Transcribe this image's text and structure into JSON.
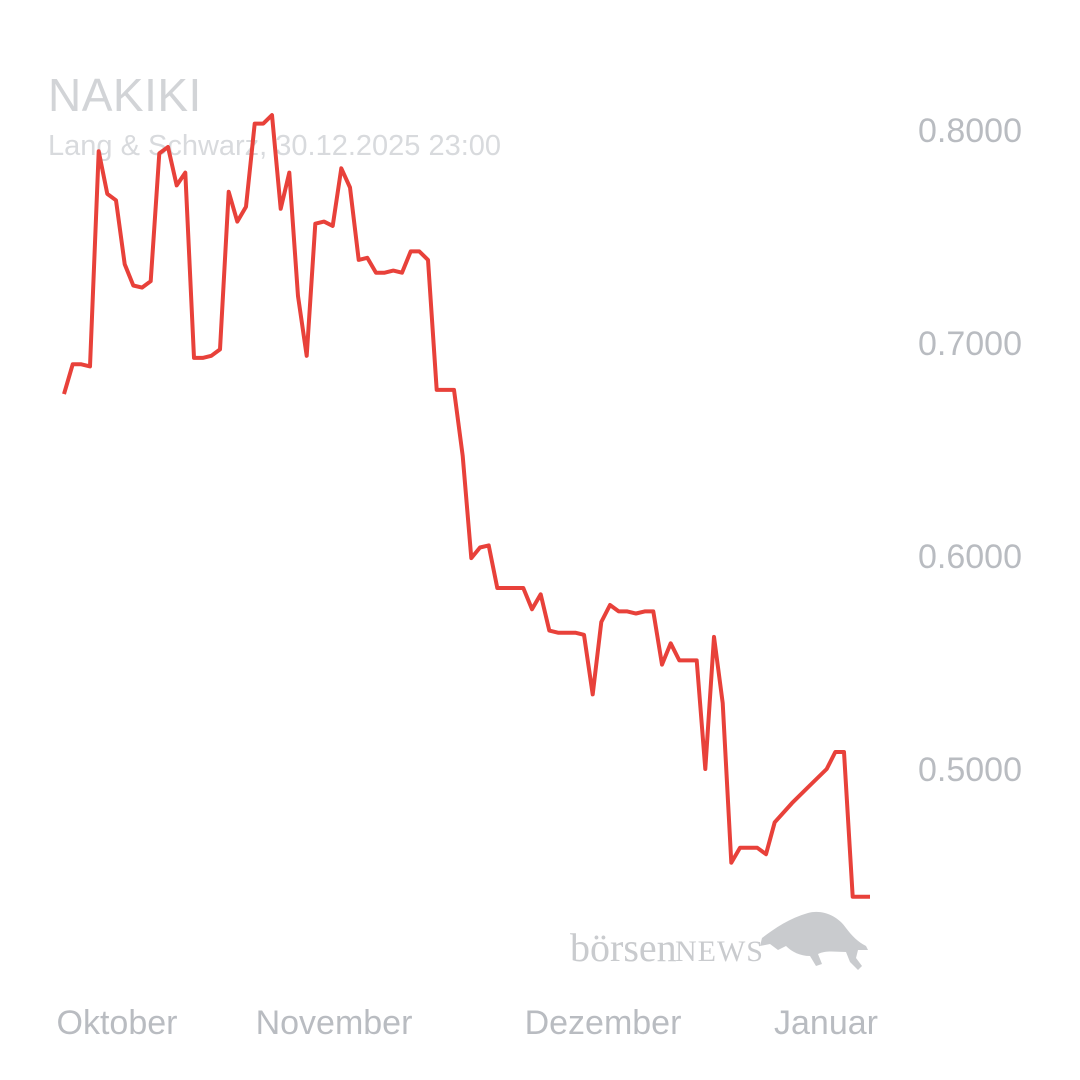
{
  "header": {
    "title": "NAKIKI",
    "subtitle": "Lang & Schwarz, 30.12.2025 23:00"
  },
  "watermark": {
    "text_main": "börsen",
    "text_news": "NEWS",
    "icon": "bull-icon"
  },
  "colors": {
    "line": "#e8413a",
    "axis_text": "#b9bcc1",
    "title": "#d2d4d7"
  },
  "chart_data": {
    "type": "line",
    "title": "NAKIKI",
    "subtitle": "Lang & Schwarz, 30.12.2025 23:00",
    "xlabel": "",
    "ylabel": "",
    "ylim": [
      0.4375,
      0.8115
    ],
    "yticks": [
      0.8,
      0.7,
      0.6,
      0.5
    ],
    "ytick_labels": [
      "0.8000",
      "0.7000",
      "0.6000",
      "0.5000"
    ],
    "xticks": [
      0,
      36,
      74,
      111
    ],
    "xtick_labels": [
      "Oktober",
      "November",
      "Dezember",
      "Januar"
    ],
    "xlim": [
      -2,
      114
    ],
    "grid": false,
    "legend": "none",
    "series": [
      {
        "values": [
          0.676,
          0.69,
          0.69,
          0.689,
          0.79,
          0.77,
          0.767,
          0.737,
          0.727,
          0.726,
          0.729,
          0.789,
          0.792,
          0.774,
          0.78,
          0.693,
          0.693,
          0.694,
          0.697,
          0.771,
          0.757,
          0.764,
          0.803,
          0.803,
          0.807,
          0.763,
          0.78,
          0.722,
          0.694,
          0.756,
          0.757,
          0.755,
          0.782,
          0.773,
          0.739,
          0.74,
          0.733,
          0.733,
          0.734,
          0.733,
          0.743,
          0.743,
          0.739,
          0.678,
          0.678,
          0.678,
          0.647,
          0.599,
          0.604,
          0.605,
          0.585,
          0.585,
          0.585,
          0.585,
          0.575,
          0.582,
          0.565,
          0.564,
          0.564,
          0.564,
          0.563,
          0.535,
          0.569,
          0.577,
          0.574,
          0.574,
          0.573,
          0.574,
          0.574,
          0.549,
          0.559,
          0.551,
          0.551,
          0.551,
          0.5,
          0.562,
          0.531,
          0.456,
          0.463,
          0.463,
          0.463,
          0.46,
          0.475,
          0.484,
          0.492,
          0.5,
          0.508,
          0.508,
          0.44,
          0.44,
          0.44
        ],
        "x": [
          0,
          1,
          2,
          3,
          4,
          5,
          6,
          7,
          8,
          9,
          10,
          11,
          12,
          13,
          14,
          15,
          16,
          17,
          18,
          19,
          20,
          21,
          22,
          23,
          24,
          25,
          26,
          27,
          28,
          29,
          30,
          31,
          32,
          33,
          34,
          35,
          36,
          37,
          38,
          39,
          40,
          41,
          42,
          43,
          44,
          45,
          46,
          47,
          48,
          49,
          50,
          51,
          52,
          53,
          54,
          55,
          56,
          57,
          58,
          59,
          60,
          61,
          62,
          63,
          64,
          65,
          66,
          67,
          68,
          69,
          70,
          71,
          72,
          73,
          74,
          75,
          76,
          77,
          78,
          79,
          80,
          81,
          82,
          84,
          86,
          88,
          89,
          90,
          91,
          92,
          93
        ]
      }
    ]
  }
}
